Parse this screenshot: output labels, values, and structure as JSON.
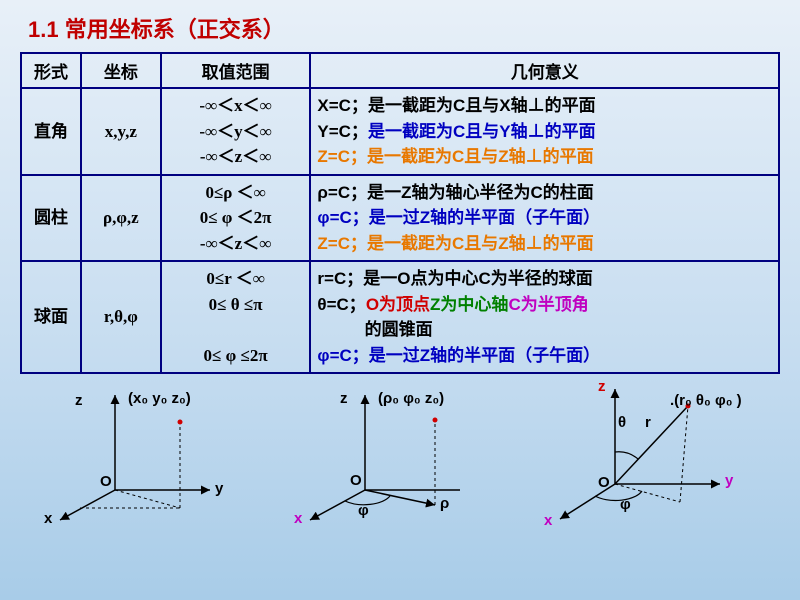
{
  "title": {
    "text": "1.1 常用坐标系（正交系）",
    "color": "#c00000",
    "fontsize": 22
  },
  "table": {
    "border_color": "#000080",
    "headers": [
      "形式",
      "坐标",
      "取值范围",
      "几何意义"
    ],
    "colors": {
      "black": "#000000",
      "blue": "#0000c0",
      "orange": "#e87800",
      "green": "#008000",
      "magenta": "#c000c0",
      "red": "#d00000"
    },
    "rows": [
      {
        "form": "直角",
        "coord": "x,y,z",
        "range": "-∞＜x＜∞\n-∞＜y＜∞\n-∞＜z＜∞",
        "meaning_lines": [
          {
            "prefix": "X=C；",
            "prefix_color": "#000000",
            "body": "是一截距为C且与X轴⊥的平面",
            "body_color": "#000000"
          },
          {
            "prefix": "Y=C；",
            "prefix_color": "#000000",
            "body": "是一截距为C且与Y轴⊥的平面",
            "body_color": "#0000c0"
          },
          {
            "prefix": "Z=C；",
            "prefix_color": "#e87800",
            "body": "是一截距为C且与Z轴⊥的平面",
            "body_color": "#e87800"
          }
        ]
      },
      {
        "form": "圆柱",
        "coord": "ρ,φ,z",
        "range": "0≤ρ ＜∞\n0≤ φ ＜2π\n-∞＜z＜∞",
        "meaning_lines": [
          {
            "prefix": "ρ=C；",
            "prefix_color": "#000000",
            "body": "是一Z轴为轴心半径为C的柱面",
            "body_color": "#000000"
          },
          {
            "prefix": "φ=C；",
            "prefix_color": "#0000c0",
            "body": "是一过Z轴的半平面（子午面）",
            "body_color": "#0000c0"
          },
          {
            "prefix": "Z=C；",
            "prefix_color": "#e87800",
            "body": "是一截距为C且与Z轴⊥的平面",
            "body_color": "#e87800"
          }
        ]
      },
      {
        "form": "球面",
        "coord": "r,θ,φ",
        "range": "0≤r ＜∞\n0≤ θ ≤π\n\n0≤ φ ≤2π",
        "meaning_lines": [
          {
            "prefix": "r=C；",
            "prefix_color": "#000000",
            "body": "是一O点为中心C为半径的球面",
            "body_color": "#000000"
          },
          {
            "segments": [
              {
                "t": "θ=C；",
                "c": "#000000"
              },
              {
                "t": "O为顶点",
                "c": "#d00000"
              },
              {
                "t": "Z为中心轴",
                "c": "#008000"
              },
              {
                "t": "C为半顶角",
                "c": "#c000c0"
              }
            ]
          },
          {
            "indent": "        ",
            "body": "的圆锥面",
            "body_color": "#000000"
          },
          {
            "prefix": "φ=C；",
            "prefix_color": "#0000c0",
            "body": "是一过Z轴的半平面（子午面）",
            "body_color": "#0000c0"
          }
        ]
      }
    ]
  },
  "diagrams": {
    "label_color_axis": "#000000",
    "label_color_x": "#c000c0",
    "label_color_z": "#d00000",
    "point_color": "#d00000",
    "cartesian": {
      "z": "z",
      "x": "x",
      "y": "y",
      "O": "O",
      "pt": "(x₀ y₀ z₀)"
    },
    "cylindrical": {
      "z": "z",
      "x": "x",
      "rho": "ρ",
      "phi": "φ",
      "O": "O",
      "pt": "(ρ₀ φ₀ z₀)"
    },
    "spherical": {
      "z": "z",
      "x": "x",
      "y": "y",
      "r": "r",
      "theta": "θ",
      "phi": "φ",
      "O": "O",
      "pt": ".(r₀ θ₀ φ₀ )"
    }
  }
}
